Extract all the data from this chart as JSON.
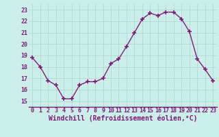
{
  "x": [
    0,
    1,
    2,
    3,
    4,
    5,
    6,
    7,
    8,
    9,
    10,
    11,
    12,
    13,
    14,
    15,
    16,
    17,
    18,
    19,
    20,
    21,
    22,
    23
  ],
  "y": [
    18.8,
    18.0,
    16.8,
    16.4,
    15.2,
    15.2,
    16.4,
    16.7,
    16.7,
    17.0,
    18.3,
    18.7,
    19.8,
    21.0,
    22.2,
    22.7,
    22.5,
    22.8,
    22.8,
    22.2,
    21.1,
    18.7,
    17.8,
    16.8
  ],
  "line_color": "#7b1a7b",
  "marker": "+",
  "markersize": 4.0,
  "markeredgewidth": 1.2,
  "linewidth": 1.0,
  "bg_color": "#cceee8",
  "grid_color": "#aad4cc",
  "xlabel": "Windchill (Refroidissement éolien,°C)",
  "xlabel_color": "#7b1a7b",
  "xlabel_fontsize": 7.0,
  "ylim": [
    14.5,
    23.5
  ],
  "yticks": [
    15,
    16,
    17,
    18,
    19,
    20,
    21,
    22,
    23
  ],
  "xticks": [
    0,
    1,
    2,
    3,
    4,
    5,
    6,
    7,
    8,
    9,
    10,
    11,
    12,
    13,
    14,
    15,
    16,
    17,
    18,
    19,
    20,
    21,
    22,
    23
  ],
  "tick_fontsize": 6.0,
  "tick_color": "#7b1a7b",
  "border_color": "#7b1a7b"
}
